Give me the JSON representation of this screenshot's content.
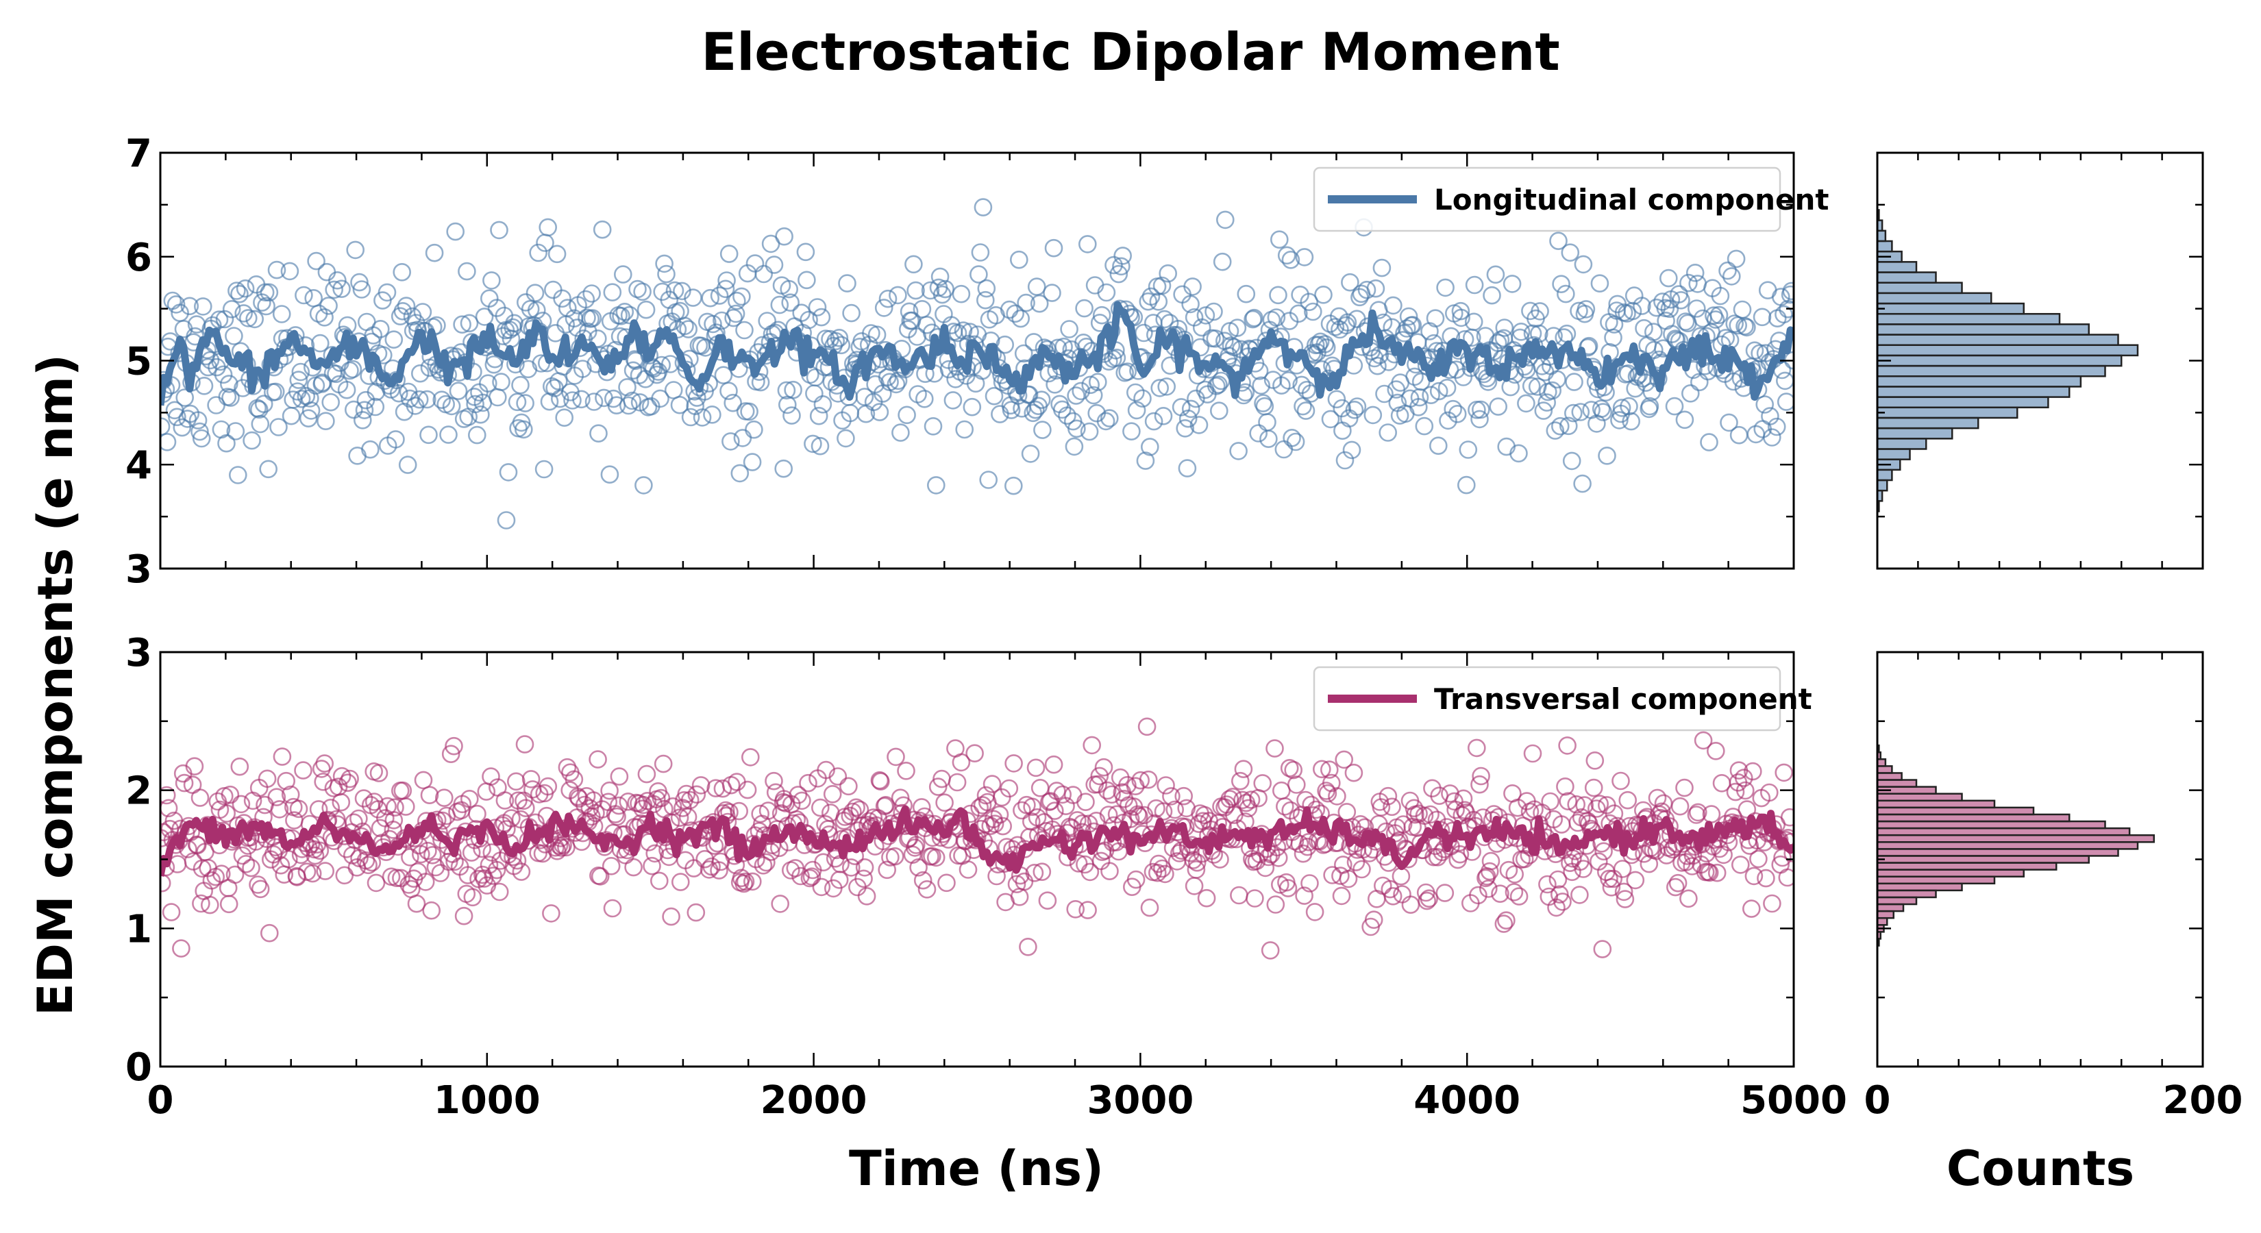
{
  "figure": {
    "title": "Electrostatic Dipolar Moment",
    "ylabel": "EDM components (e nm)",
    "xlabel_time": "Time (ns)",
    "xlabel_counts": "Counts"
  },
  "colors": {
    "longitudinal": "#4a78a8",
    "transversal": "#a8306e"
  },
  "chart_data": [
    {
      "id": "longitudinal-timeseries",
      "type": "scatter",
      "xlim": [
        0,
        5000
      ],
      "ylim": [
        3,
        7
      ],
      "x_ticks": [
        "0",
        "1000",
        "2000",
        "3000",
        "4000",
        "5000"
      ],
      "y_ticks": [
        "3",
        "4",
        "5",
        "6",
        "7"
      ],
      "legend": "Longitudinal component",
      "legend_position": "top-right",
      "points_mean": 5.0,
      "points_std": 0.45,
      "points_count": 1100,
      "running_average": [
        [
          0,
          4.7
        ],
        [
          50,
          5.15
        ],
        [
          100,
          4.85
        ],
        [
          150,
          5.3
        ],
        [
          200,
          5.05
        ],
        [
          300,
          4.85
        ],
        [
          400,
          5.2
        ],
        [
          500,
          4.95
        ],
        [
          600,
          5.15
        ],
        [
          700,
          4.8
        ],
        [
          800,
          5.25
        ],
        [
          900,
          4.9
        ],
        [
          1000,
          5.2
        ],
        [
          1100,
          4.95
        ],
        [
          1150,
          5.35
        ],
        [
          1200,
          5.0
        ],
        [
          1300,
          5.1
        ],
        [
          1400,
          4.95
        ],
        [
          1450,
          5.35
        ],
        [
          1500,
          5.05
        ],
        [
          1550,
          5.3
        ],
        [
          1600,
          5.0
        ],
        [
          1650,
          4.75
        ],
        [
          1700,
          5.15
        ],
        [
          1800,
          4.95
        ],
        [
          1900,
          5.2
        ],
        [
          2000,
          5.05
        ],
        [
          2100,
          4.8
        ],
        [
          2200,
          5.1
        ],
        [
          2300,
          4.95
        ],
        [
          2400,
          5.2
        ],
        [
          2450,
          4.95
        ],
        [
          2500,
          5.25
        ],
        [
          2600,
          4.75
        ],
        [
          2700,
          5.05
        ],
        [
          2800,
          4.9
        ],
        [
          2900,
          5.15
        ],
        [
          2950,
          5.5
        ],
        [
          3000,
          4.9
        ],
        [
          3100,
          5.2
        ],
        [
          3200,
          4.95
        ],
        [
          3300,
          4.85
        ],
        [
          3400,
          5.25
        ],
        [
          3500,
          5.0
        ],
        [
          3600,
          4.85
        ],
        [
          3700,
          5.3
        ],
        [
          3800,
          5.05
        ],
        [
          3900,
          4.9
        ],
        [
          4000,
          5.15
        ],
        [
          4100,
          4.95
        ],
        [
          4200,
          5.05
        ],
        [
          4300,
          5.15
        ],
        [
          4400,
          4.85
        ],
        [
          4500,
          5.05
        ],
        [
          4600,
          4.95
        ],
        [
          4700,
          5.1
        ],
        [
          4800,
          5.0
        ],
        [
          4900,
          4.85
        ],
        [
          5000,
          5.25
        ]
      ]
    },
    {
      "id": "transversal-timeseries",
      "type": "scatter",
      "xlim": [
        0,
        5000
      ],
      "ylim": [
        0,
        3
      ],
      "x_ticks": [
        "0",
        "1000",
        "2000",
        "3000",
        "4000",
        "5000"
      ],
      "y_ticks": [
        "0",
        "1",
        "2",
        "3"
      ],
      "legend": "Transversal component",
      "legend_position": "top-right",
      "points_mean": 1.7,
      "points_std": 0.25,
      "points_count": 1100,
      "running_average": [
        [
          0,
          1.4
        ],
        [
          50,
          1.65
        ],
        [
          100,
          1.75
        ],
        [
          200,
          1.65
        ],
        [
          300,
          1.75
        ],
        [
          400,
          1.6
        ],
        [
          500,
          1.75
        ],
        [
          600,
          1.65
        ],
        [
          700,
          1.55
        ],
        [
          800,
          1.75
        ],
        [
          900,
          1.65
        ],
        [
          1000,
          1.7
        ],
        [
          1100,
          1.6
        ],
        [
          1200,
          1.75
        ],
        [
          1300,
          1.7
        ],
        [
          1400,
          1.6
        ],
        [
          1500,
          1.75
        ],
        [
          1600,
          1.65
        ],
        [
          1700,
          1.75
        ],
        [
          1800,
          1.55
        ],
        [
          1900,
          1.7
        ],
        [
          2000,
          1.65
        ],
        [
          2100,
          1.6
        ],
        [
          2200,
          1.7
        ],
        [
          2300,
          1.75
        ],
        [
          2400,
          1.7
        ],
        [
          2450,
          1.85
        ],
        [
          2500,
          1.6
        ],
        [
          2600,
          1.45
        ],
        [
          2700,
          1.65
        ],
        [
          2800,
          1.6
        ],
        [
          2900,
          1.7
        ],
        [
          3000,
          1.65
        ],
        [
          3100,
          1.7
        ],
        [
          3200,
          1.6
        ],
        [
          3300,
          1.7
        ],
        [
          3400,
          1.65
        ],
        [
          3500,
          1.75
        ],
        [
          3600,
          1.7
        ],
        [
          3700,
          1.65
        ],
        [
          3800,
          1.5
        ],
        [
          3900,
          1.7
        ],
        [
          4000,
          1.65
        ],
        [
          4100,
          1.7
        ],
        [
          4200,
          1.65
        ],
        [
          4300,
          1.55
        ],
        [
          4400,
          1.7
        ],
        [
          4500,
          1.65
        ],
        [
          4600,
          1.75
        ],
        [
          4700,
          1.65
        ],
        [
          4800,
          1.7
        ],
        [
          4900,
          1.75
        ],
        [
          5000,
          1.6
        ]
      ]
    },
    {
      "id": "longitudinal-histogram",
      "type": "bar",
      "orientation": "horizontal",
      "xlim": [
        0,
        200
      ],
      "ylim": [
        3,
        7
      ],
      "x_ticks": [
        "0",
        "200"
      ],
      "bin_width": 0.1,
      "bins": [
        [
          3.6,
          1
        ],
        [
          3.7,
          3
        ],
        [
          3.8,
          6
        ],
        [
          3.9,
          9
        ],
        [
          4.0,
          14
        ],
        [
          4.1,
          20
        ],
        [
          4.2,
          30
        ],
        [
          4.3,
          46
        ],
        [
          4.4,
          62
        ],
        [
          4.5,
          86
        ],
        [
          4.6,
          105
        ],
        [
          4.7,
          118
        ],
        [
          4.8,
          125
        ],
        [
          4.9,
          140
        ],
        [
          5.0,
          150
        ],
        [
          5.1,
          160
        ],
        [
          5.2,
          148
        ],
        [
          5.3,
          130
        ],
        [
          5.4,
          112
        ],
        [
          5.5,
          90
        ],
        [
          5.6,
          70
        ],
        [
          5.7,
          52
        ],
        [
          5.8,
          36
        ],
        [
          5.9,
          24
        ],
        [
          6.0,
          15
        ],
        [
          6.1,
          9
        ],
        [
          6.2,
          5
        ],
        [
          6.3,
          3
        ],
        [
          6.4,
          1
        ]
      ]
    },
    {
      "id": "transversal-histogram",
      "type": "bar",
      "orientation": "horizontal",
      "xlim": [
        0,
        200
      ],
      "ylim": [
        0,
        3
      ],
      "x_ticks": [
        "0",
        "200"
      ],
      "bin_width": 0.05,
      "bins": [
        [
          0.9,
          1
        ],
        [
          0.95,
          2
        ],
        [
          1.0,
          4
        ],
        [
          1.05,
          6
        ],
        [
          1.1,
          10
        ],
        [
          1.15,
          16
        ],
        [
          1.2,
          24
        ],
        [
          1.25,
          36
        ],
        [
          1.3,
          52
        ],
        [
          1.35,
          72
        ],
        [
          1.4,
          90
        ],
        [
          1.45,
          110
        ],
        [
          1.5,
          130
        ],
        [
          1.55,
          148
        ],
        [
          1.6,
          160
        ],
        [
          1.65,
          170
        ],
        [
          1.7,
          155
        ],
        [
          1.75,
          140
        ],
        [
          1.8,
          118
        ],
        [
          1.85,
          96
        ],
        [
          1.9,
          72
        ],
        [
          1.95,
          52
        ],
        [
          2.0,
          36
        ],
        [
          2.05,
          24
        ],
        [
          2.1,
          15
        ],
        [
          2.15,
          9
        ],
        [
          2.2,
          5
        ],
        [
          2.25,
          2
        ],
        [
          2.3,
          1
        ]
      ]
    }
  ]
}
